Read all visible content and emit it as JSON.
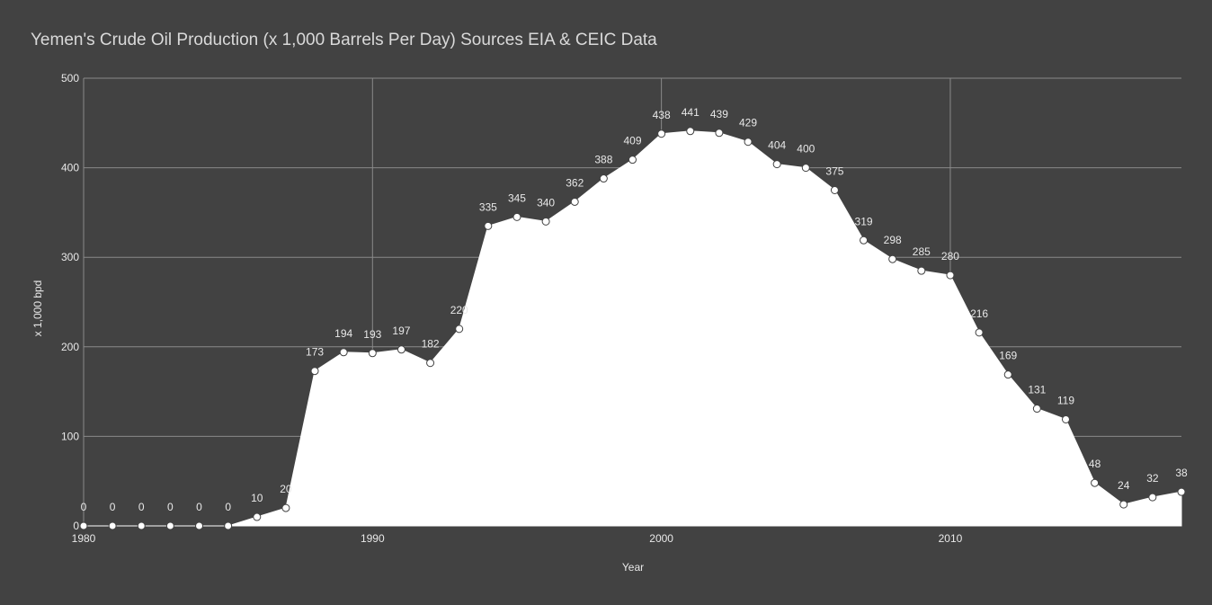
{
  "chart_data": {
    "type": "area",
    "title": "Yemen's Crude Oil Production (x 1,000 Barrels Per Day) Sources EIA & CEIC Data",
    "xlabel": "Year",
    "ylabel": "x 1,000 bpd",
    "x": [
      1980,
      1981,
      1982,
      1983,
      1984,
      1985,
      1986,
      1987,
      1988,
      1989,
      1990,
      1991,
      1992,
      1993,
      1994,
      1995,
      1996,
      1997,
      1998,
      1999,
      2000,
      2001,
      2002,
      2003,
      2004,
      2005,
      2006,
      2007,
      2008,
      2009,
      2010,
      2011,
      2012,
      2013,
      2014,
      2015,
      2016,
      2017,
      2018
    ],
    "series": [
      {
        "values": [
          0,
          0,
          0,
          0,
          0,
          0,
          10,
          20,
          173,
          194,
          193,
          197,
          182,
          220,
          335,
          345,
          340,
          362,
          388,
          409,
          438,
          441,
          439,
          429,
          404,
          400,
          375,
          319,
          298,
          285,
          280,
          216,
          169,
          131,
          119,
          48,
          24,
          32,
          38
        ]
      }
    ],
    "xlim": [
      1980,
      2018
    ],
    "ylim": [
      0,
      500
    ],
    "x_ticks": [
      1980,
      1990,
      2000,
      2010
    ],
    "y_ticks": [
      0,
      100,
      200,
      300,
      400,
      500
    ],
    "grid": true,
    "legend": "none",
    "colors": {
      "background": "#424242",
      "area_fill": "#ffffff",
      "gridline": "#8a8a8a",
      "text": "#e8e8e8",
      "title": "#d9d9d9"
    }
  }
}
